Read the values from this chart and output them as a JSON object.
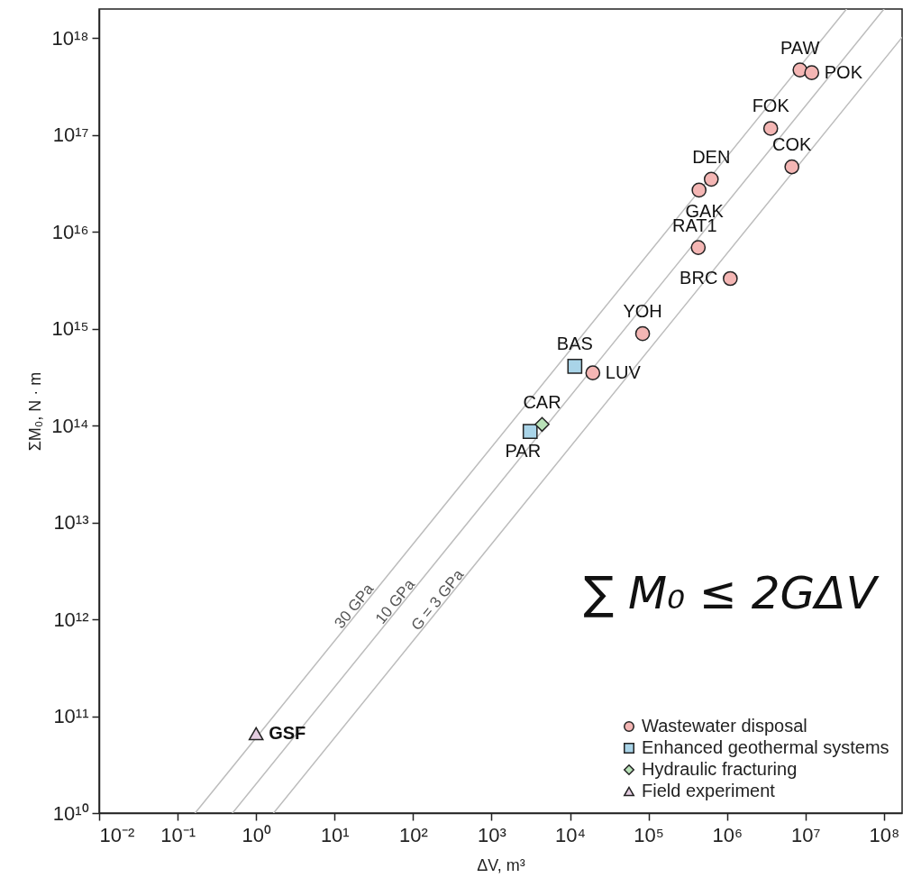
{
  "chart_data": {
    "type": "scatter",
    "xlabel": "ΔV, m³",
    "ylabel": "ΣM₀, N · m",
    "log": "xy",
    "grid": false,
    "legend": "bottom right",
    "xlim": [
      0.01,
      170000000.0
    ],
    "ylim": [
      10000000000.0,
      2e+18
    ],
    "xticks": [
      {
        "value": 0.01,
        "label": "10⁻²"
      },
      {
        "value": 0.1,
        "label": "10⁻¹"
      },
      {
        "value": 1,
        "label": "10⁰"
      },
      {
        "value": 10,
        "label": "10¹"
      },
      {
        "value": 100,
        "label": "10²"
      },
      {
        "value": 1000,
        "label": "10³"
      },
      {
        "value": 10000,
        "label": "10⁴"
      },
      {
        "value": 100000,
        "label": "10⁵"
      },
      {
        "value": 1000000,
        "label": "10⁶"
      },
      {
        "value": 10000000,
        "label": "10⁷"
      },
      {
        "value": 100000000,
        "label": "10⁸"
      }
    ],
    "yticks": [
      {
        "value": 10000000000.0,
        "label": "10¹⁰"
      },
      {
        "value": 100000000000.0,
        "label": "10¹¹"
      },
      {
        "value": 1000000000000.0,
        "label": "10¹²"
      },
      {
        "value": 10000000000000.0,
        "label": "10¹³"
      },
      {
        "value": 100000000000000.0,
        "label": "10¹⁴"
      },
      {
        "value": 1000000000000000.0,
        "label": "10¹⁵"
      },
      {
        "value": 1e+16,
        "label": "10¹⁶"
      },
      {
        "value": 1e+17,
        "label": "10¹⁷"
      },
      {
        "value": 1e+18,
        "label": "10¹⁸"
      }
    ],
    "annotations": [
      {
        "text": "30 GPa",
        "x": 24,
        "y": 1440000000000.0
      },
      {
        "text": "10 GPa",
        "x": 80,
        "y": 1600000000000.0
      },
      {
        "text": "G = 3 GPa",
        "x": 277,
        "y": 1660000000000.0
      },
      "∑ M₀ ≤ 2GΔV"
    ],
    "series": [
      {
        "type": "line",
        "color": "#bdbdbd",
        "x": [
          0.167,
          33300000.0
        ],
        "values": [
          10000000000.0,
          2e+18
        ]
      },
      {
        "type": "line",
        "color": "#bdbdbd",
        "x": [
          0.5,
          100000000.0
        ],
        "values": [
          10000000000.0,
          2e+18
        ]
      },
      {
        "type": "line",
        "color": "#bdbdbd",
        "x": [
          1.67,
          170000000.0
        ],
        "values": [
          10000000000.0,
          1.02e+18
        ]
      },
      {
        "name": "Wastewater disposal",
        "color": "#f4b6b4",
        "marker": "circle",
        "x": [
          8500000.0,
          12000000.0,
          3600000.0,
          6700000.0,
          630000.0,
          440000.0,
          430000.0,
          1100000.0,
          84000.0,
          19500.0
        ],
        "values": [
          4.7e+17,
          4.4e+17,
          1.17e+17,
          4.7e+16,
          3.5e+16,
          2.7e+16,
          6900000000000000.0,
          3300000000000000.0,
          890000000000000.0,
          350000000000000.0
        ],
        "value_labels": [
          "PAW",
          "POK",
          "FOK",
          "COK",
          "DEN",
          "GAK",
          "RAT1",
          "BRC",
          "YOH",
          "LUV"
        ]
      },
      {
        "name": "Enhanced geothermal systems",
        "color": "#a9d4e8",
        "marker": "square",
        "x": [
          11500.0,
          3100.0
        ],
        "values": [
          410000000000000.0,
          87000000000000.0
        ],
        "value_labels": [
          "BAS",
          "PAR"
        ]
      },
      {
        "name": "Hydraulic fracturing",
        "color": "#b9e2b8",
        "marker": "diamond",
        "x": [
          4400.0
        ],
        "values": [
          103000000000000.0
        ],
        "value_labels": [
          "CAR"
        ]
      },
      {
        "name": "Field experiment",
        "color": "#e4cde0",
        "marker": "triangle",
        "x": [
          1.0
        ],
        "values": [
          66000000000.0
        ],
        "value_labels": [
          "GSF"
        ]
      }
    ]
  }
}
